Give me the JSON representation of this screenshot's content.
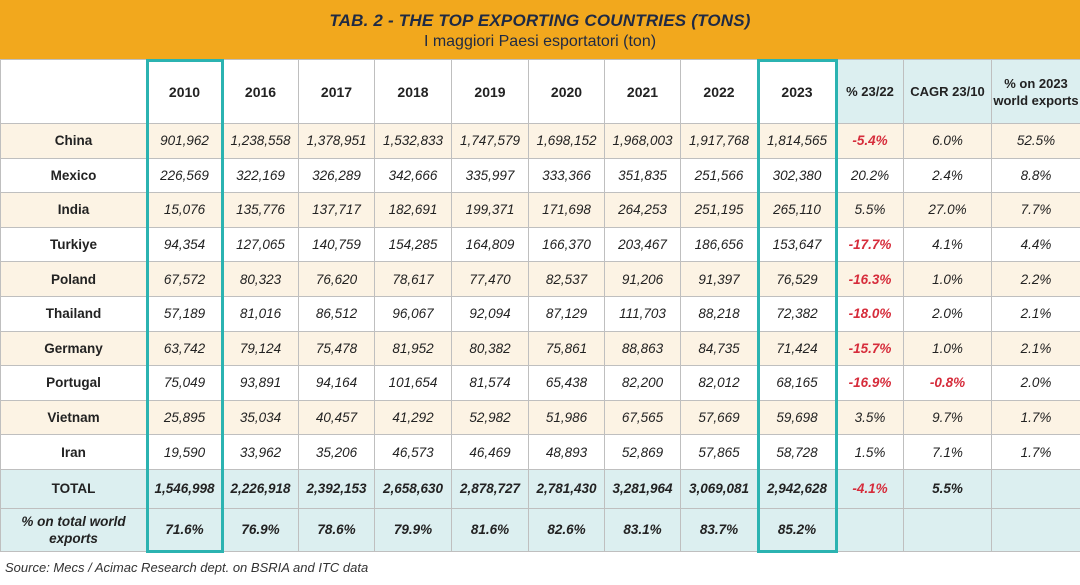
{
  "title": {
    "main": "TAB. 2 - THE TOP EXPORTING COUNTRIES (TONS)",
    "sub": "I maggiori Paesi esportatori (ton)"
  },
  "columns": [
    "",
    "2010",
    "2016",
    "2017",
    "2018",
    "2019",
    "2020",
    "2021",
    "2022",
    "2023",
    "% 23/22",
    "CAGR 23/10",
    "% on 2023 world exports"
  ],
  "rows": [
    {
      "country": "China",
      "values": [
        "901,962",
        "1,238,558",
        "1,378,951",
        "1,532,833",
        "1,747,579",
        "1,698,152",
        "1,968,003",
        "1,917,768",
        "1,814,565"
      ],
      "pct": "-5.4%",
      "cagr": "6.0%",
      "world": "52.5%"
    },
    {
      "country": "Mexico",
      "values": [
        "226,569",
        "322,169",
        "326,289",
        "342,666",
        "335,997",
        "333,366",
        "351,835",
        "251,566",
        "302,380"
      ],
      "pct": "20.2%",
      "cagr": "2.4%",
      "world": "8.8%"
    },
    {
      "country": "India",
      "values": [
        "15,076",
        "135,776",
        "137,717",
        "182,691",
        "199,371",
        "171,698",
        "264,253",
        "251,195",
        "265,110"
      ],
      "pct": "5.5%",
      "cagr": "27.0%",
      "world": "7.7%"
    },
    {
      "country": "Turkiye",
      "values": [
        "94,354",
        "127,065",
        "140,759",
        "154,285",
        "164,809",
        "166,370",
        "203,467",
        "186,656",
        "153,647"
      ],
      "pct": "-17.7%",
      "cagr": "4.1%",
      "world": "4.4%"
    },
    {
      "country": "Poland",
      "values": [
        "67,572",
        "80,323",
        "76,620",
        "78,617",
        "77,470",
        "82,537",
        "91,206",
        "91,397",
        "76,529"
      ],
      "pct": "-16.3%",
      "cagr": "1.0%",
      "world": "2.2%"
    },
    {
      "country": "Thailand",
      "values": [
        "57,189",
        "81,016",
        "86,512",
        "96,067",
        "92,094",
        "87,129",
        "111,703",
        "88,218",
        "72,382"
      ],
      "pct": "-18.0%",
      "cagr": "2.0%",
      "world": "2.1%"
    },
    {
      "country": "Germany",
      "values": [
        "63,742",
        "79,124",
        "75,478",
        "81,952",
        "80,382",
        "75,861",
        "88,863",
        "84,735",
        "71,424"
      ],
      "pct": "-15.7%",
      "cagr": "1.0%",
      "world": "2.1%"
    },
    {
      "country": "Portugal",
      "values": [
        "75,049",
        "93,891",
        "94,164",
        "101,654",
        "81,574",
        "65,438",
        "82,200",
        "82,012",
        "68,165"
      ],
      "pct": "-16.9%",
      "cagr": "-0.8%",
      "world": "2.0%"
    },
    {
      "country": "Vietnam",
      "values": [
        "25,895",
        "35,034",
        "40,457",
        "41,292",
        "52,982",
        "51,986",
        "67,565",
        "57,669",
        "59,698"
      ],
      "pct": "3.5%",
      "cagr": "9.7%",
      "world": "1.7%"
    },
    {
      "country": "Iran",
      "values": [
        "19,590",
        "33,962",
        "35,206",
        "46,573",
        "46,469",
        "48,893",
        "52,869",
        "57,865",
        "58,728"
      ],
      "pct": "1.5%",
      "cagr": "7.1%",
      "world": "1.7%"
    }
  ],
  "total": {
    "label": "TOTAL",
    "values": [
      "1,546,998",
      "2,226,918",
      "2,392,153",
      "2,658,630",
      "2,878,727",
      "2,781,430",
      "3,281,964",
      "3,069,081",
      "2,942,628"
    ],
    "pct": "-4.1%",
    "cagr": "5.5%"
  },
  "share": {
    "label": "% on total world exports",
    "values": [
      "71.6%",
      "76.9%",
      "78.6%",
      "79.9%",
      "81.6%",
      "82.6%",
      "83.1%",
      "83.7%",
      "85.2%"
    ]
  },
  "source": "Source: Mecs / Acimac Research dept. on BSRIA and ITC data",
  "colors": {
    "title_bg": "#F2A81D",
    "highlight_border": "#2BB3B1",
    "negative": "#D62C3B",
    "accent_bg": "#DCEFF0",
    "row_alt_bg": "#FCF3E4"
  }
}
